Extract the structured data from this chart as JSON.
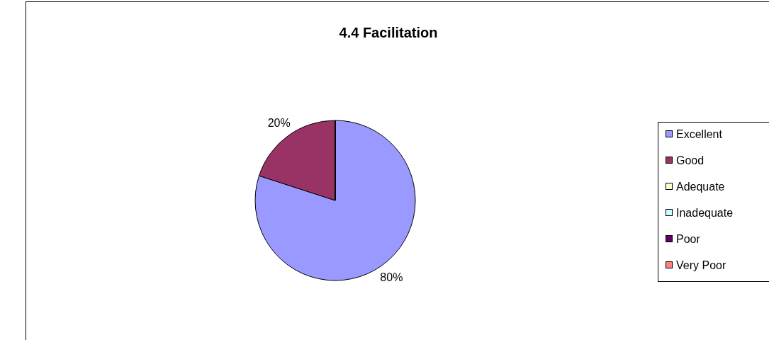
{
  "chart_data": {
    "type": "pie",
    "title": "4.4 Facilitation",
    "categories": [
      "Excellent",
      "Good",
      "Adequate",
      "Inadequate",
      "Poor",
      "Very Poor"
    ],
    "values": [
      80,
      20,
      0,
      0,
      0,
      0
    ],
    "colors": [
      "#9999ff",
      "#993366",
      "#ffffcc",
      "#ccffff",
      "#660066",
      "#ff8080"
    ],
    "value_labels": [
      "80%",
      "20%",
      null,
      null,
      null,
      null
    ],
    "legend": "right"
  }
}
